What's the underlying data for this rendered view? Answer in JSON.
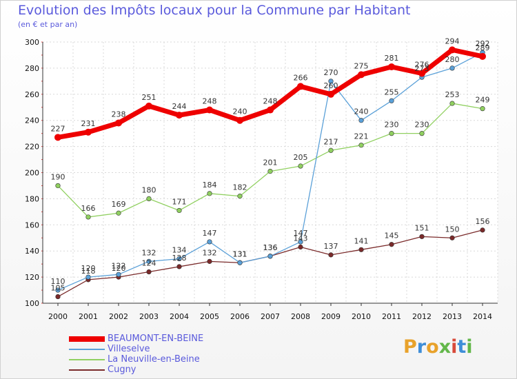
{
  "title": "Evolution des Impôts locaux pour la Commune par Habitant",
  "subtitle": "(en € et par an)",
  "logo_text": "Proxiti",
  "chart_data": {
    "type": "line",
    "title": "Evolution des Impôts locaux pour la Commune par Habitant",
    "subtitle": "(en € et par an)",
    "xlabel": "",
    "ylabel": "",
    "x": [
      2000,
      2001,
      2002,
      2003,
      2004,
      2005,
      2006,
      2007,
      2008,
      2009,
      2010,
      2011,
      2012,
      2013,
      2014
    ],
    "ylim": [
      100,
      300
    ],
    "yticks": [
      100,
      120,
      140,
      160,
      180,
      200,
      220,
      240,
      260,
      280,
      300
    ],
    "grid": true,
    "legend_position": "bottom-left",
    "series": [
      {
        "name": "BEAUMONT-EN-BEINE",
        "color": "#ee0000",
        "values": [
          227,
          231,
          238,
          251,
          244,
          248,
          240,
          248,
          266,
          260,
          275,
          281,
          276,
          294,
          289
        ]
      },
      {
        "name": "Villeselve",
        "color": "#5aa0d8",
        "values": [
          110,
          120,
          122,
          132,
          134,
          147,
          131,
          136,
          147,
          270,
          240,
          255,
          273,
          280,
          292
        ]
      },
      {
        "name": "La Neuville-en-Beine",
        "color": "#90d060",
        "values": [
          190,
          166,
          169,
          180,
          171,
          184,
          182,
          201,
          205,
          217,
          221,
          230,
          230,
          253,
          249
        ]
      },
      {
        "name": "Cugny",
        "color": "#7a2a2a",
        "values": [
          105,
          118,
          120,
          124,
          128,
          132,
          131,
          136,
          143,
          137,
          141,
          145,
          151,
          150,
          156
        ]
      }
    ]
  }
}
